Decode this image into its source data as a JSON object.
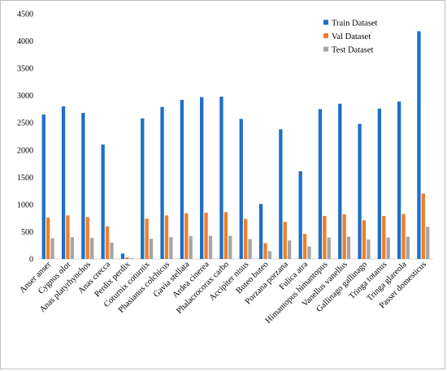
{
  "chart_data": {
    "type": "bar",
    "title": "",
    "xlabel": "",
    "ylabel": "",
    "ylim": [
      0,
      4500
    ],
    "yticks": [
      0,
      500,
      1000,
      1500,
      2000,
      2500,
      3000,
      3500,
      4000,
      4500
    ],
    "grid": false,
    "legend_position": "top-right",
    "categories": [
      "Anser anser",
      "Cygnus olor",
      "Anas platyrhynchos",
      "Anas crecca",
      "Perdix perdix",
      "Coturnix coturnix",
      "Phasianus colchicus",
      "Gavia stellata",
      "Ardea cinerea",
      "Phalacrocorax carbo",
      "Accipiter nisus",
      "Buteo buteo",
      "Porzana porzana",
      "Fulica atra",
      "Himantopus himantopus",
      "Vanellus vanellus",
      "Gallinago gallinago",
      "Tringa totanus",
      "Tringa glareola",
      "Passer domesticus"
    ],
    "series": [
      {
        "name": "Train Dataset",
        "color": "#1f6fc5",
        "values": [
          2650,
          2800,
          2680,
          2100,
          100,
          2580,
          2790,
          2920,
          2970,
          2980,
          2570,
          1010,
          2380,
          1610,
          2750,
          2850,
          2480,
          2760,
          2890,
          4180
        ]
      },
      {
        "name": "Val Dataset",
        "color": "#f07e2a",
        "values": [
          760,
          800,
          770,
          600,
          30,
          740,
          800,
          840,
          850,
          860,
          735,
          290,
          680,
          460,
          790,
          820,
          710,
          790,
          825,
          1200
        ]
      },
      {
        "name": "Test Dataset",
        "color": "#a5a5a5",
        "values": [
          380,
          400,
          385,
          300,
          15,
          370,
          400,
          420,
          425,
          425,
          365,
          145,
          340,
          230,
          395,
          410,
          355,
          395,
          410,
          590
        ]
      }
    ]
  }
}
